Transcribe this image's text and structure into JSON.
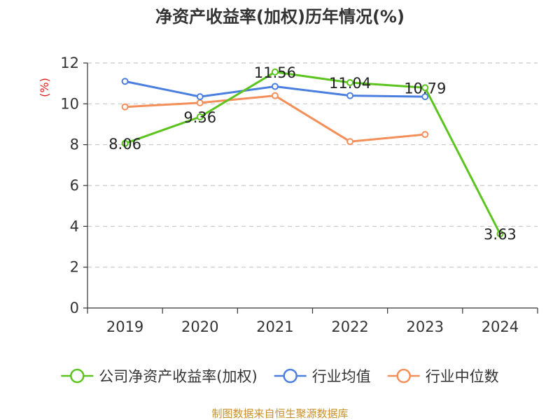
{
  "title": "净资产收益率(加权)历年情况(%)",
  "source": "制图数据来自恒生聚源数据库",
  "chart_data": {
    "type": "line",
    "title": "净资产收益率(加权)历年情况(%)",
    "ylabel": "(%)",
    "xlabel": "",
    "categories": [
      "2019",
      "2020",
      "2021",
      "2022",
      "2023",
      "2024"
    ],
    "ylim": [
      0,
      12
    ],
    "yticks": [
      0,
      2,
      4,
      6,
      8,
      10,
      12
    ],
    "grid": true,
    "legend_position": "bottom",
    "series": [
      {
        "name": "公司净资产收益率(加权)",
        "color": "#5cc41e",
        "values": [
          8.06,
          9.36,
          11.56,
          11.04,
          10.79,
          3.63
        ],
        "show_labels": true
      },
      {
        "name": "行业均值",
        "color": "#4a7fe0",
        "values": [
          11.1,
          10.35,
          10.85,
          10.4,
          10.35,
          null
        ],
        "show_labels": false
      },
      {
        "name": "行业中位数",
        "color": "#f58f5a",
        "values": [
          9.85,
          10.05,
          10.4,
          8.15,
          8.5,
          null
        ],
        "show_labels": false
      }
    ]
  }
}
